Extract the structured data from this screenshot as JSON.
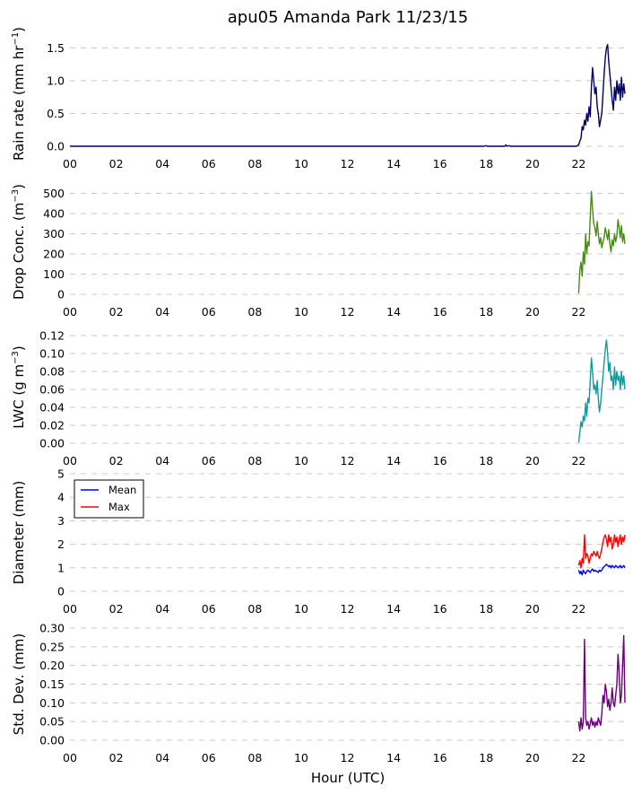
{
  "title": "apu05 Amanda Park 11/23/15",
  "xlabel": "Hour (UTC)",
  "chart_data": [
    {
      "type": "line",
      "ylabel": "Rain rate (mm hr",
      "ylabel_sup": "−1",
      "ylabel_end": ")",
      "ylim": [
        0,
        1.6
      ],
      "yticks": [
        "0.0",
        "0.5",
        "1.0",
        "1.5"
      ],
      "ytick_values": [
        0,
        0.5,
        1.0,
        1.5
      ],
      "x_hours": [
        0,
        17.9,
        18,
        18.05,
        18.8,
        18.85,
        18.9,
        19.0,
        19.05,
        21.8,
        21.9,
        22.0,
        22.05,
        22.1,
        22.15,
        22.2,
        22.25,
        22.3,
        22.35,
        22.4,
        22.45,
        22.5,
        22.55,
        22.6,
        22.65,
        22.7,
        22.75,
        22.8,
        22.85,
        22.9,
        22.95,
        23.0,
        23.05,
        23.1,
        23.15,
        23.2,
        23.25,
        23.3,
        23.35,
        23.4,
        23.45,
        23.5,
        23.55,
        23.6,
        23.65,
        23.7,
        23.75,
        23.8,
        23.85,
        23.9,
        23.95,
        24.0
      ],
      "series": [
        {
          "color": "#000060",
          "values": [
            0,
            0,
            0.01,
            0,
            0,
            0.02,
            0,
            0.01,
            0,
            0,
            0,
            0.02,
            0.08,
            0.12,
            0.3,
            0.25,
            0.4,
            0.32,
            0.5,
            0.38,
            0.6,
            0.45,
            0.9,
            1.2,
            1.0,
            0.8,
            0.9,
            0.6,
            0.5,
            0.3,
            0.4,
            0.5,
            0.8,
            1.1,
            1.35,
            1.5,
            1.55,
            1.3,
            1.1,
            0.9,
            0.7,
            0.55,
            0.9,
            0.7,
            1.0,
            0.8,
            0.95,
            0.7,
            1.05,
            0.75,
            0.95,
            0.8
          ]
        }
      ]
    },
    {
      "type": "line",
      "ylabel": "Drop Conc. (m",
      "ylabel_sup": "−3",
      "ylabel_end": ")",
      "ylim": [
        0,
        520
      ],
      "yticks": [
        "0",
        "100",
        "200",
        "300",
        "400",
        "500"
      ],
      "ytick_values": [
        0,
        100,
        200,
        300,
        400,
        500
      ],
      "x_hours": [
        22.0,
        22.05,
        22.1,
        22.15,
        22.2,
        22.25,
        22.3,
        22.35,
        22.4,
        22.45,
        22.5,
        22.55,
        22.6,
        22.65,
        22.7,
        22.75,
        22.8,
        22.85,
        22.9,
        22.95,
        23.0,
        23.05,
        23.1,
        23.15,
        23.2,
        23.25,
        23.3,
        23.35,
        23.4,
        23.45,
        23.5,
        23.55,
        23.6,
        23.65,
        23.7,
        23.75,
        23.8,
        23.85,
        23.9,
        23.95,
        24.0
      ],
      "series": [
        {
          "color": "#4a8a1a",
          "values": [
            5,
            120,
            160,
            90,
            210,
            150,
            300,
            200,
            260,
            240,
            380,
            510,
            420,
            350,
            330,
            290,
            360,
            300,
            250,
            280,
            230,
            260,
            280,
            330,
            300,
            270,
            320,
            250,
            210,
            270,
            240,
            300,
            260,
            290,
            370,
            330,
            280,
            340,
            260,
            300,
            250
          ]
        }
      ]
    },
    {
      "type": "line",
      "ylabel": "LWC (g m",
      "ylabel_sup": "−3",
      "ylabel_end": ")",
      "ylim": [
        0,
        0.125
      ],
      "yticks": [
        "0.00",
        "0.02",
        "0.04",
        "0.06",
        "0.08",
        "0.10",
        "0.12"
      ],
      "ytick_values": [
        0,
        0.02,
        0.04,
        0.06,
        0.08,
        0.1,
        0.12
      ],
      "x_hours": [
        22.0,
        22.05,
        22.1,
        22.15,
        22.2,
        22.25,
        22.3,
        22.35,
        22.4,
        22.45,
        22.5,
        22.55,
        22.6,
        22.65,
        22.7,
        22.75,
        22.8,
        22.85,
        22.9,
        22.95,
        23.0,
        23.05,
        23.1,
        23.15,
        23.2,
        23.25,
        23.3,
        23.35,
        23.4,
        23.45,
        23.5,
        23.55,
        23.6,
        23.65,
        23.7,
        23.75,
        23.8,
        23.85,
        23.9,
        23.95,
        24.0
      ],
      "series": [
        {
          "color": "#119a9a",
          "values": [
            0.001,
            0.012,
            0.024,
            0.018,
            0.03,
            0.025,
            0.045,
            0.03,
            0.05,
            0.045,
            0.07,
            0.095,
            0.08,
            0.06,
            0.065,
            0.055,
            0.07,
            0.05,
            0.035,
            0.045,
            0.06,
            0.075,
            0.09,
            0.105,
            0.115,
            0.1,
            0.08,
            0.09,
            0.07,
            0.075,
            0.06,
            0.085,
            0.065,
            0.08,
            0.07,
            0.075,
            0.06,
            0.08,
            0.065,
            0.075,
            0.06
          ]
        }
      ]
    },
    {
      "type": "line",
      "ylabel": "Diameter (mm)",
      "ylabel_sup": "",
      "ylabel_end": "",
      "ylim": [
        0,
        5
      ],
      "yticks": [
        "0",
        "1",
        "2",
        "3",
        "4",
        "5"
      ],
      "ytick_values": [
        0,
        1,
        2,
        3,
        4,
        5
      ],
      "legend": [
        "Mean",
        "Max"
      ],
      "x_hours": [
        22.0,
        22.05,
        22.1,
        22.15,
        22.2,
        22.25,
        22.3,
        22.35,
        22.4,
        22.45,
        22.5,
        22.55,
        22.6,
        22.65,
        22.7,
        22.75,
        22.8,
        22.85,
        22.9,
        22.95,
        23.0,
        23.05,
        23.1,
        23.15,
        23.2,
        23.25,
        23.3,
        23.35,
        23.4,
        23.45,
        23.5,
        23.55,
        23.6,
        23.65,
        23.7,
        23.75,
        23.8,
        23.85,
        23.9,
        23.95,
        24.0
      ],
      "series": [
        {
          "name": "Mean",
          "color": "#0000ff",
          "values": [
            0.9,
            0.75,
            0.85,
            0.7,
            0.9,
            0.8,
            0.75,
            0.85,
            0.9,
            0.85,
            0.8,
            0.9,
            0.95,
            0.85,
            0.9,
            0.85,
            0.85,
            0.8,
            0.9,
            0.85,
            0.9,
            1.0,
            1.05,
            1.1,
            1.15,
            1.1,
            1.05,
            1.1,
            1.0,
            1.1,
            1.05,
            1.0,
            1.1,
            1.05,
            1.0,
            1.05,
            1.1,
            1.0,
            1.05,
            1.1,
            1.0
          ]
        },
        {
          "name": "Max",
          "color": "#ff0000",
          "values": [
            1.1,
            1.3,
            1.0,
            1.4,
            1.2,
            2.4,
            1.4,
            1.6,
            1.5,
            1.2,
            1.4,
            1.6,
            1.5,
            1.7,
            1.6,
            1.5,
            1.7,
            1.5,
            1.4,
            1.6,
            1.8,
            2.1,
            2.3,
            2.4,
            2.2,
            1.9,
            2.4,
            2.1,
            2.3,
            1.8,
            2.0,
            2.4,
            2.1,
            2.3,
            1.9,
            2.2,
            2.4,
            2.0,
            2.3,
            2.1,
            2.4
          ]
        }
      ]
    },
    {
      "type": "line",
      "ylabel": "Std. Dev. (mm)",
      "ylabel_sup": "",
      "ylabel_end": "",
      "ylim": [
        0,
        0.3
      ],
      "yticks": [
        "0.00",
        "0.05",
        "0.10",
        "0.15",
        "0.20",
        "0.25",
        "0.30"
      ],
      "ytick_values": [
        0,
        0.05,
        0.1,
        0.15,
        0.2,
        0.25,
        0.3
      ],
      "x_hours": [
        22.0,
        22.05,
        22.1,
        22.15,
        22.2,
        22.25,
        22.3,
        22.35,
        22.4,
        22.45,
        22.5,
        22.55,
        22.6,
        22.65,
        22.7,
        22.75,
        22.8,
        22.85,
        22.9,
        22.95,
        23.0,
        23.05,
        23.1,
        23.15,
        23.2,
        23.25,
        23.3,
        23.35,
        23.4,
        23.45,
        23.5,
        23.55,
        23.6,
        23.65,
        23.7,
        23.75,
        23.8,
        23.85,
        23.9,
        23.95,
        24.0
      ],
      "series": [
        {
          "color": "#6a0078",
          "values": [
            0.05,
            0.025,
            0.06,
            0.03,
            0.05,
            0.27,
            0.06,
            0.04,
            0.05,
            0.03,
            0.045,
            0.06,
            0.04,
            0.05,
            0.035,
            0.05,
            0.04,
            0.06,
            0.05,
            0.04,
            0.07,
            0.12,
            0.1,
            0.15,
            0.13,
            0.09,
            0.11,
            0.08,
            0.1,
            0.14,
            0.1,
            0.09,
            0.12,
            0.15,
            0.23,
            0.18,
            0.1,
            0.12,
            0.2,
            0.28,
            0.1
          ]
        }
      ]
    }
  ],
  "xticks": [
    "00",
    "02",
    "04",
    "06",
    "08",
    "10",
    "12",
    "14",
    "16",
    "18",
    "20",
    "22"
  ],
  "xtick_values": [
    0,
    2,
    4,
    6,
    8,
    10,
    12,
    14,
    16,
    18,
    20,
    22
  ],
  "xlim": [
    0,
    24
  ]
}
